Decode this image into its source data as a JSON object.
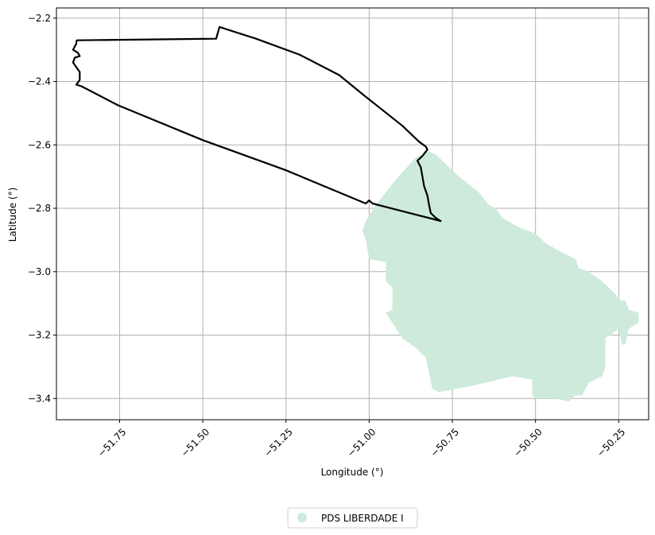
{
  "chart_data": {
    "type": "map",
    "xlabel": "Longitude (°)",
    "ylabel": "Latitude (°)",
    "xlim": [
      -51.94,
      -50.16
    ],
    "ylim": [
      -3.467,
      -2.168
    ],
    "x_ticks": [
      {
        "value": -51.75,
        "label": "−51.75"
      },
      {
        "value": -51.5,
        "label": "−51.50"
      },
      {
        "value": -51.25,
        "label": "−51.25"
      },
      {
        "value": -51.0,
        "label": "−51.00"
      },
      {
        "value": -50.75,
        "label": "−50.75"
      },
      {
        "value": -50.5,
        "label": "−50.50"
      },
      {
        "value": -50.25,
        "label": "−50.25"
      }
    ],
    "y_ticks": [
      {
        "value": -2.2,
        "label": "−2.2"
      },
      {
        "value": -2.4,
        "label": "−2.4"
      },
      {
        "value": -2.6,
        "label": "−2.6"
      },
      {
        "value": -2.8,
        "label": "−2.8"
      },
      {
        "value": -3.0,
        "label": "−3.0"
      },
      {
        "value": -3.2,
        "label": "−3.2"
      },
      {
        "value": -3.4,
        "label": "−3.4"
      }
    ],
    "grid": true,
    "legend": {
      "placement": "bottom-center",
      "entries": [
        {
          "label": "PDS LIBERDADE I",
          "color": "#cdeadb"
        }
      ]
    },
    "region_fill_color": "#cdeadb",
    "boundary_color": "#000000",
    "region_polygon": [
      [
        -50.82,
        -2.62
      ],
      [
        -50.8,
        -2.63
      ],
      [
        -50.73,
        -2.7
      ],
      [
        -50.67,
        -2.75
      ],
      [
        -50.64,
        -2.79
      ],
      [
        -50.62,
        -2.8
      ],
      [
        -50.6,
        -2.83
      ],
      [
        -50.55,
        -2.86
      ],
      [
        -50.5,
        -2.88
      ],
      [
        -50.47,
        -2.91
      ],
      [
        -50.42,
        -2.94
      ],
      [
        -50.38,
        -2.96
      ],
      [
        -50.37,
        -2.99
      ],
      [
        -50.34,
        -3.0
      ],
      [
        -50.3,
        -3.03
      ],
      [
        -50.28,
        -3.05
      ],
      [
        -50.26,
        -3.07
      ],
      [
        -50.25,
        -3.09
      ],
      [
        -50.23,
        -3.09
      ],
      [
        -50.22,
        -3.12
      ],
      [
        -50.19,
        -3.13
      ],
      [
        -50.19,
        -3.16
      ],
      [
        -50.22,
        -3.18
      ],
      [
        -50.23,
        -3.23
      ],
      [
        -50.24,
        -3.23
      ],
      [
        -50.25,
        -3.18
      ],
      [
        -50.29,
        -3.21
      ],
      [
        -50.29,
        -3.3
      ],
      [
        -50.3,
        -3.33
      ],
      [
        -50.34,
        -3.35
      ],
      [
        -50.36,
        -3.39
      ],
      [
        -50.38,
        -3.39
      ],
      [
        -50.4,
        -3.41
      ],
      [
        -50.44,
        -3.4
      ],
      [
        -50.5,
        -3.4
      ],
      [
        -50.51,
        -3.39
      ],
      [
        -50.51,
        -3.34
      ],
      [
        -50.57,
        -3.33
      ],
      [
        -50.69,
        -3.36
      ],
      [
        -50.79,
        -3.38
      ],
      [
        -50.81,
        -3.37
      ],
      [
        -50.83,
        -3.27
      ],
      [
        -50.84,
        -3.26
      ],
      [
        -50.86,
        -3.24
      ],
      [
        -50.9,
        -3.21
      ],
      [
        -50.95,
        -3.13
      ],
      [
        -50.93,
        -3.12
      ],
      [
        -50.93,
        -3.05
      ],
      [
        -50.95,
        -3.03
      ],
      [
        -50.95,
        -2.97
      ],
      [
        -51.0,
        -2.96
      ],
      [
        -51.01,
        -2.9
      ],
      [
        -51.02,
        -2.87
      ],
      [
        -51.01,
        -2.84
      ],
      [
        -50.98,
        -2.79
      ],
      [
        -50.92,
        -2.71
      ],
      [
        -50.86,
        -2.64
      ]
    ],
    "boundary_polyline": [
      [
        -51.88,
        -2.27
      ],
      [
        -51.46,
        -2.265
      ],
      [
        -51.45,
        -2.228
      ],
      [
        -51.34,
        -2.265
      ],
      [
        -51.21,
        -2.315
      ],
      [
        -51.09,
        -2.38
      ],
      [
        -51.02,
        -2.44
      ],
      [
        -50.9,
        -2.54
      ],
      [
        -50.85,
        -2.59
      ],
      [
        -50.83,
        -2.605
      ],
      [
        -50.825,
        -2.615
      ],
      [
        -50.84,
        -2.635
      ],
      [
        -50.855,
        -2.65
      ],
      [
        -50.845,
        -2.67
      ],
      [
        -50.84,
        -2.7
      ],
      [
        -50.835,
        -2.73
      ],
      [
        -50.825,
        -2.76
      ],
      [
        -50.82,
        -2.79
      ],
      [
        -50.815,
        -2.815
      ],
      [
        -50.8,
        -2.83
      ],
      [
        -50.785,
        -2.84
      ],
      [
        -50.99,
        -2.785
      ],
      [
        -51.0,
        -2.775
      ],
      [
        -51.01,
        -2.785
      ],
      [
        -51.25,
        -2.68
      ],
      [
        -51.5,
        -2.585
      ],
      [
        -51.755,
        -2.475
      ],
      [
        -51.865,
        -2.415
      ],
      [
        -51.88,
        -2.41
      ],
      [
        -51.87,
        -2.395
      ],
      [
        -51.87,
        -2.37
      ],
      [
        -51.88,
        -2.355
      ],
      [
        -51.89,
        -2.34
      ],
      [
        -51.885,
        -2.325
      ],
      [
        -51.87,
        -2.32
      ],
      [
        -51.875,
        -2.31
      ],
      [
        -51.89,
        -2.3
      ],
      [
        -51.885,
        -2.29
      ],
      [
        -51.88,
        -2.28
      ],
      [
        -51.88,
        -2.27
      ]
    ]
  }
}
